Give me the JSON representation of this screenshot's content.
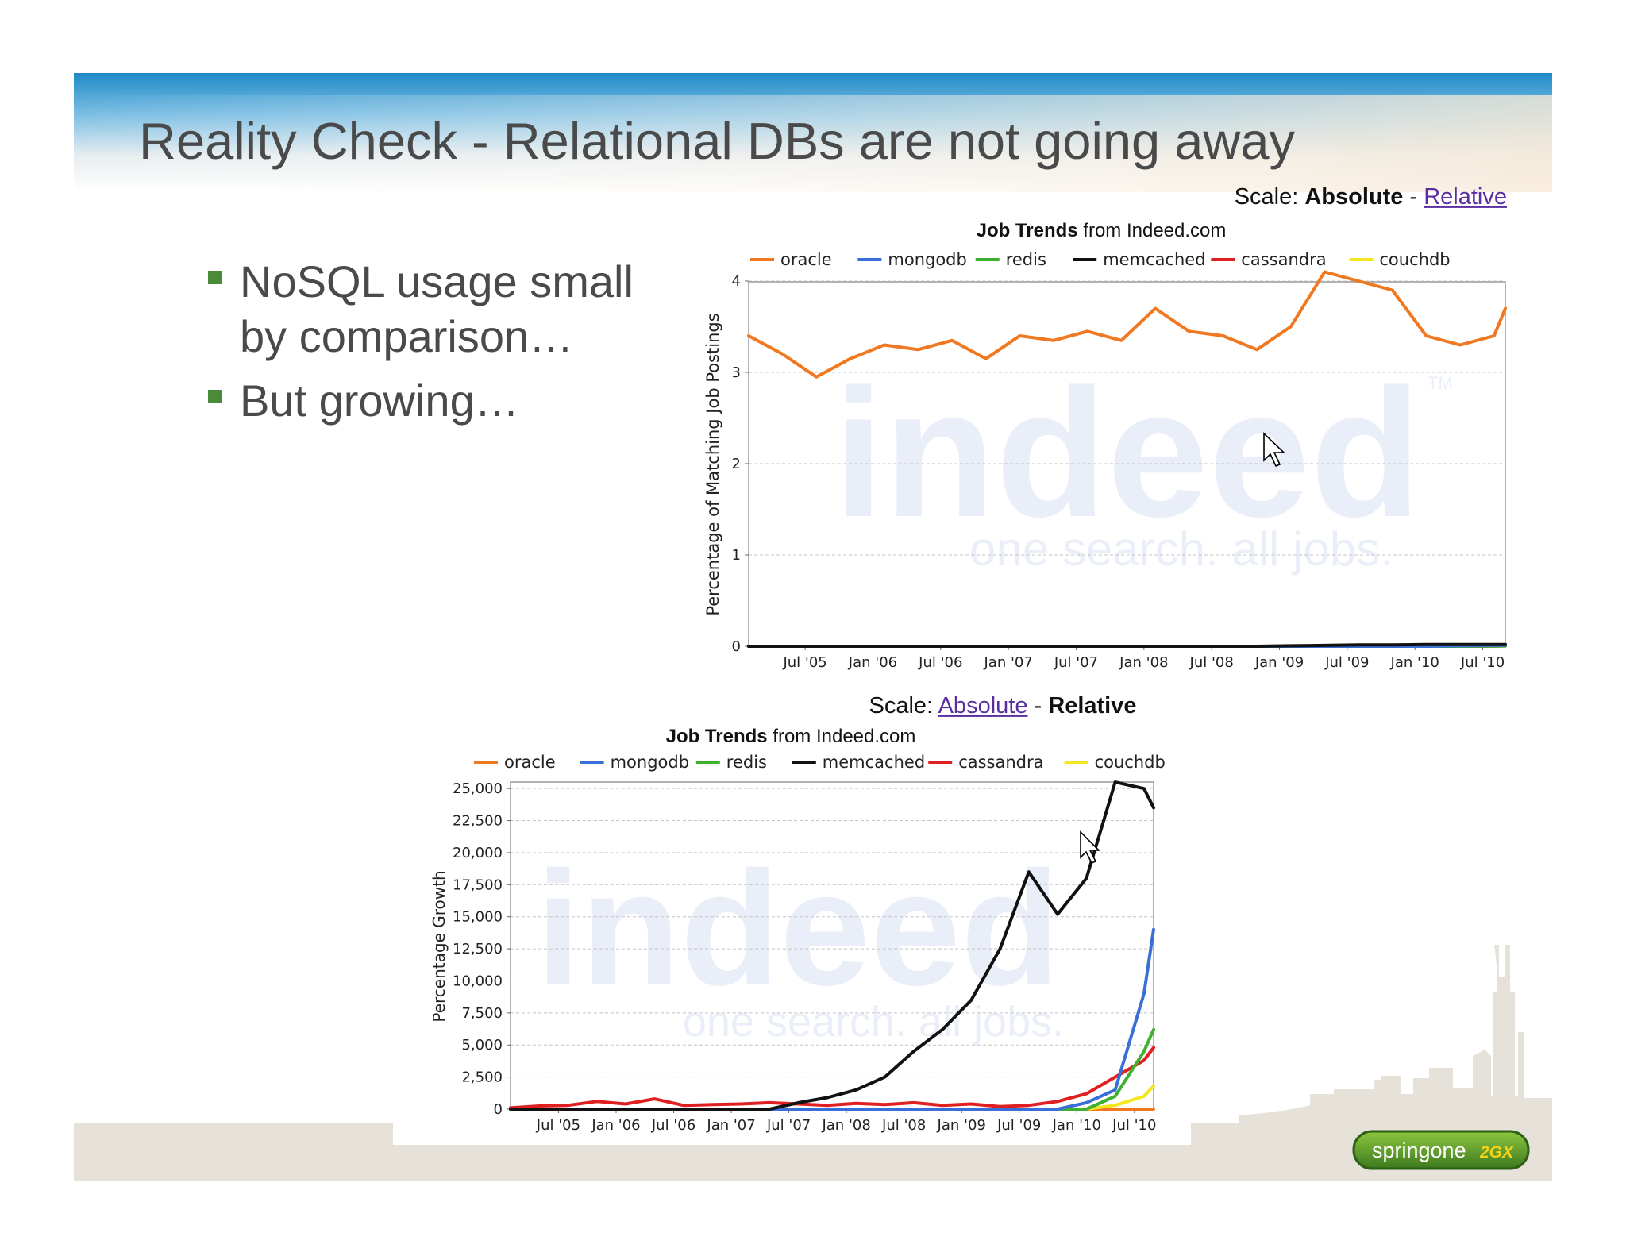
{
  "slide": {
    "title": "Reality Check - Relational DBs are not going away",
    "bullets": [
      {
        "lines": [
          "NoSQL usage small",
          "by comparison…"
        ]
      },
      {
        "lines": [
          "But growing…"
        ]
      }
    ],
    "logo": {
      "text_main": "springone",
      "text_badge": "2GX"
    },
    "colors": {
      "header_top": "#1f8ac8",
      "bullet": "#4a8a3a",
      "footer": "#e6e2da"
    }
  },
  "chart_data": [
    {
      "type": "line",
      "scale": {
        "label": "Scale:",
        "absolute": "Absolute",
        "separator": "-",
        "relative": "Relative",
        "active": "Absolute"
      },
      "title": {
        "bold": "Job Trends",
        "rest": "from Indeed.com"
      },
      "ylabel": "Percentage of Matching Job Postings",
      "yticks": [
        "0",
        "1",
        "2",
        "3",
        "4"
      ],
      "ylim": [
        0,
        4.2
      ],
      "x_ticks": [
        "Jul '05",
        "Jan '06",
        "Jul '06",
        "Jan '07",
        "Jul '07",
        "Jan '08",
        "Jul '08",
        "Jan '09",
        "Jul '09",
        "Jan '10",
        "Jul '10"
      ],
      "x": [
        "2005-02",
        "2005-05",
        "2005-08",
        "2005-11",
        "2006-02",
        "2006-05",
        "2006-08",
        "2006-11",
        "2007-02",
        "2007-05",
        "2007-08",
        "2007-11",
        "2008-02",
        "2008-05",
        "2008-08",
        "2008-11",
        "2009-02",
        "2009-05",
        "2009-08",
        "2009-11",
        "2010-02",
        "2010-05",
        "2010-08",
        "2010-09"
      ],
      "series": [
        {
          "name": "oracle",
          "color": "#f07820",
          "values": [
            3.4,
            3.2,
            2.95,
            3.15,
            3.3,
            3.25,
            3.35,
            3.15,
            3.4,
            3.35,
            3.45,
            3.35,
            3.7,
            3.45,
            3.4,
            3.25,
            3.5,
            4.1,
            4.0,
            3.9,
            3.4,
            3.3,
            3.4,
            3.7
          ]
        },
        {
          "name": "mongodb",
          "color": "#3a6fd8",
          "values": [
            0,
            0,
            0,
            0,
            0,
            0,
            0,
            0,
            0,
            0,
            0,
            0,
            0,
            0,
            0,
            0,
            0,
            0,
            0,
            0,
            0,
            0.005,
            0.01,
            0.01
          ]
        },
        {
          "name": "redis",
          "color": "#40b030",
          "values": [
            0,
            0,
            0,
            0,
            0,
            0,
            0,
            0,
            0,
            0,
            0,
            0,
            0,
            0,
            0,
            0,
            0,
            0,
            0,
            0,
            0,
            0,
            0.003,
            0.005
          ]
        },
        {
          "name": "memcached",
          "color": "#111111",
          "values": [
            0,
            0,
            0,
            0,
            0,
            0,
            0,
            0,
            0,
            0,
            0,
            0,
            0,
            0,
            0,
            0,
            0.005,
            0.01,
            0.015,
            0.015,
            0.02,
            0.02,
            0.02,
            0.02
          ]
        },
        {
          "name": "cassandra",
          "color": "#e02020",
          "values": [
            0,
            0,
            0,
            0,
            0,
            0,
            0,
            0,
            0,
            0,
            0,
            0,
            0,
            0,
            0,
            0,
            0,
            0,
            0,
            0,
            0,
            0,
            0.003,
            0.004
          ]
        },
        {
          "name": "couchdb",
          "color": "#f5e620",
          "values": [
            0,
            0,
            0,
            0,
            0,
            0,
            0,
            0,
            0,
            0,
            0,
            0,
            0,
            0,
            0,
            0,
            0,
            0,
            0,
            0,
            0,
            0,
            0.002,
            0.002
          ]
        }
      ]
    },
    {
      "type": "line",
      "scale": {
        "label": "Scale:",
        "absolute": "Absolute",
        "separator": "-",
        "relative": "Relative",
        "active": "Relative"
      },
      "title": {
        "bold": "Job Trends",
        "rest": "from Indeed.com"
      },
      "ylabel": "Percentage Growth",
      "yticks": [
        "0",
        "2,500",
        "5,000",
        "7,500",
        "10,000",
        "12,500",
        "15,000",
        "17,500",
        "20,000",
        "22,500",
        "25,000"
      ],
      "ylim": [
        0,
        26000
      ],
      "x_ticks": [
        "Jul '05",
        "Jan '06",
        "Jul '06",
        "Jan '07",
        "Jul '07",
        "Jan '08",
        "Jul '08",
        "Jan '09",
        "Jul '09",
        "Jan '10",
        "Jul '10"
      ],
      "x": [
        "2005-02",
        "2005-05",
        "2005-08",
        "2005-11",
        "2006-02",
        "2006-05",
        "2006-08",
        "2006-11",
        "2007-02",
        "2007-05",
        "2007-08",
        "2007-11",
        "2008-02",
        "2008-05",
        "2008-08",
        "2008-11",
        "2009-02",
        "2009-05",
        "2009-08",
        "2009-11",
        "2010-02",
        "2010-05",
        "2010-08",
        "2010-09"
      ],
      "series": [
        {
          "name": "oracle",
          "color": "#f07820",
          "values": [
            0,
            0,
            0,
            0,
            0,
            0,
            0,
            0,
            0,
            0,
            0,
            0,
            0,
            0,
            0,
            0,
            0,
            0,
            0,
            0,
            0,
            0,
            0,
            0
          ]
        },
        {
          "name": "mongodb",
          "color": "#3a6fd8",
          "values": [
            0,
            0,
            0,
            0,
            0,
            0,
            0,
            0,
            0,
            0,
            0,
            0,
            0,
            0,
            0,
            0,
            0,
            0,
            0,
            0,
            500,
            1500,
            9000,
            14000
          ]
        },
        {
          "name": "redis",
          "color": "#40b030",
          "values": [
            0,
            0,
            0,
            0,
            0,
            0,
            0,
            0,
            0,
            0,
            0,
            0,
            0,
            0,
            0,
            0,
            0,
            0,
            0,
            0,
            0,
            1000,
            4500,
            6200
          ]
        },
        {
          "name": "memcached",
          "color": "#111111",
          "values": [
            0,
            0,
            0,
            0,
            0,
            0,
            0,
            0,
            0,
            0,
            500,
            900,
            1500,
            2500,
            4500,
            6200,
            8500,
            12500,
            18500,
            15200,
            18000,
            25500,
            25000,
            23500
          ]
        },
        {
          "name": "cassandra",
          "color": "#e02020",
          "values": [
            100,
            250,
            300,
            600,
            400,
            800,
            300,
            350,
            400,
            500,
            400,
            300,
            450,
            350,
            500,
            300,
            400,
            200,
            300,
            600,
            1200,
            2500,
            3800,
            4800
          ]
        },
        {
          "name": "couchdb",
          "color": "#f5e620",
          "values": [
            0,
            0,
            0,
            0,
            0,
            0,
            0,
            0,
            0,
            0,
            0,
            0,
            0,
            0,
            0,
            0,
            0,
            0,
            0,
            0,
            0,
            300,
            1000,
            1800
          ]
        }
      ]
    }
  ],
  "watermark": {
    "big": "indeed",
    "small": "one search. all jobs.",
    "tm": "TM"
  }
}
